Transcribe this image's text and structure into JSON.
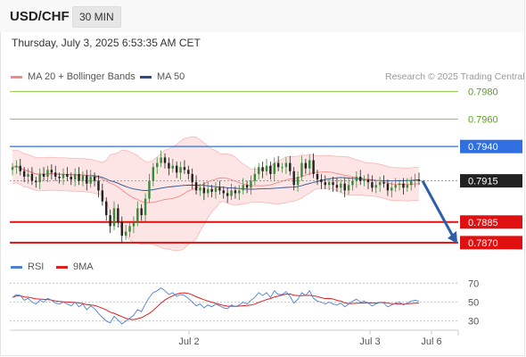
{
  "header": {
    "symbol": "USD/CHF",
    "interval": "30 MIN"
  },
  "timestamp": "Thursday, July 3, 2025 6:53:35 AM CET",
  "legend": {
    "ma20": {
      "label": "MA 20 + Bollinger Bands",
      "color": "#f28b86"
    },
    "ma50": {
      "label": "MA 50",
      "color": "#2c4f8c"
    }
  },
  "credit": "Research © 2025 Trading Central",
  "rsi_legend": {
    "rsi": {
      "label": "RSI",
      "color": "#4f7fd6"
    },
    "ma9": {
      "label": "9MA",
      "color": "#e01e1e"
    }
  },
  "chart_data": [
    {
      "type": "line",
      "title": "",
      "subtitle": "",
      "xlabel": "",
      "ylabel": "",
      "ylim": [
        0.7866,
        0.7983
      ],
      "x_ticks": [
        "Jul 2",
        "Jul 3",
        "Jul 6"
      ],
      "levels": [
        {
          "label": "0.7980",
          "value": 0.798,
          "color": "#8fc93a",
          "kind": "resistance"
        },
        {
          "label": "0.7960",
          "value": 0.796,
          "color": "#8fc93a",
          "kind": "resistance"
        },
        {
          "label": "0.7940",
          "value": 0.794,
          "color": "#2f6fe0",
          "kind": "pivot"
        },
        {
          "label": "0.7915",
          "value": 0.7915,
          "color": "#222222",
          "kind": "last"
        },
        {
          "label": "0.7885",
          "value": 0.7885,
          "color": "#e01010",
          "kind": "support"
        },
        {
          "label": "0.7870",
          "value": 0.787,
          "color": "#e01010",
          "kind": "support"
        }
      ],
      "close": [
        0.7925,
        0.7926,
        0.7922,
        0.7918,
        0.792,
        0.7915,
        0.7914,
        0.792,
        0.7918,
        0.7923,
        0.7921,
        0.7918,
        0.7917,
        0.792,
        0.7918,
        0.7916,
        0.792,
        0.7915,
        0.7919,
        0.7913,
        0.7918,
        0.7915,
        0.7908,
        0.79,
        0.789,
        0.7882,
        0.7895,
        0.7885,
        0.7875,
        0.7878,
        0.7882,
        0.7885,
        0.7895,
        0.789,
        0.7902,
        0.7915,
        0.7925,
        0.7928,
        0.7932,
        0.7928,
        0.7924,
        0.7926,
        0.7921,
        0.7925,
        0.7923,
        0.792,
        0.7914,
        0.7908,
        0.791,
        0.7906,
        0.7909,
        0.7907,
        0.791,
        0.7908,
        0.7906,
        0.7904,
        0.7908,
        0.7906,
        0.7908,
        0.7912,
        0.791,
        0.7915,
        0.792,
        0.7925,
        0.7922,
        0.7926,
        0.792,
        0.7928,
        0.7925,
        0.7925,
        0.7928,
        0.7922,
        0.7912,
        0.7918,
        0.7928,
        0.7924,
        0.793,
        0.792,
        0.7916,
        0.7914,
        0.7912,
        0.7914,
        0.7912,
        0.791,
        0.7913,
        0.7908,
        0.7912,
        0.7915,
        0.7918,
        0.7915,
        0.7916,
        0.7914,
        0.791,
        0.7912,
        0.7914,
        0.7913,
        0.7908,
        0.791,
        0.7912,
        0.7913,
        0.791,
        0.7912,
        0.7915,
        0.7916,
        0.7915
      ],
      "series": [
        {
          "name": "MA 20 + Bollinger Bands",
          "kind": "ma20_bollinger",
          "period": 20,
          "band_k": 2
        },
        {
          "name": "MA 50",
          "kind": "ma50",
          "period": 50
        }
      ],
      "forecast_arrow": {
        "from": 0.7915,
        "to": 0.787,
        "color": "#2c5fa8"
      },
      "grid": false,
      "legend_position": "top-left"
    },
    {
      "type": "line",
      "title": "",
      "xlabel": "",
      "ylabel": "",
      "ylim": [
        25,
        75
      ],
      "y_ticks": [
        70,
        50,
        30
      ],
      "guide_levels": [
        70,
        50,
        30
      ],
      "series": [
        {
          "name": "RSI",
          "color": "#4f7fd6",
          "values": [
            55,
            58,
            57,
            52,
            54,
            50,
            48,
            52,
            50,
            54,
            52,
            49,
            48,
            50,
            48,
            46,
            50,
            45,
            48,
            42,
            46,
            43,
            38,
            34,
            30,
            28,
            35,
            31,
            27,
            30,
            33,
            36,
            42,
            40,
            48,
            55,
            60,
            62,
            65,
            62,
            58,
            60,
            56,
            58,
            57,
            54,
            50,
            46,
            48,
            44,
            47,
            45,
            48,
            46,
            44,
            43,
            47,
            45,
            47,
            50,
            48,
            52,
            55,
            60,
            57,
            60,
            55,
            62,
            58,
            58,
            61,
            56,
            49,
            53,
            60,
            57,
            62,
            54,
            51,
            50,
            48,
            50,
            48,
            47,
            49,
            45,
            48,
            51,
            53,
            50,
            51,
            49,
            46,
            48,
            50,
            49,
            45,
            47,
            49,
            50,
            47,
            49,
            51,
            52,
            51
          ]
        },
        {
          "name": "9MA",
          "color": "#e01e1e",
          "period": 9
        }
      ],
      "legend_position": "top-left"
    }
  ]
}
